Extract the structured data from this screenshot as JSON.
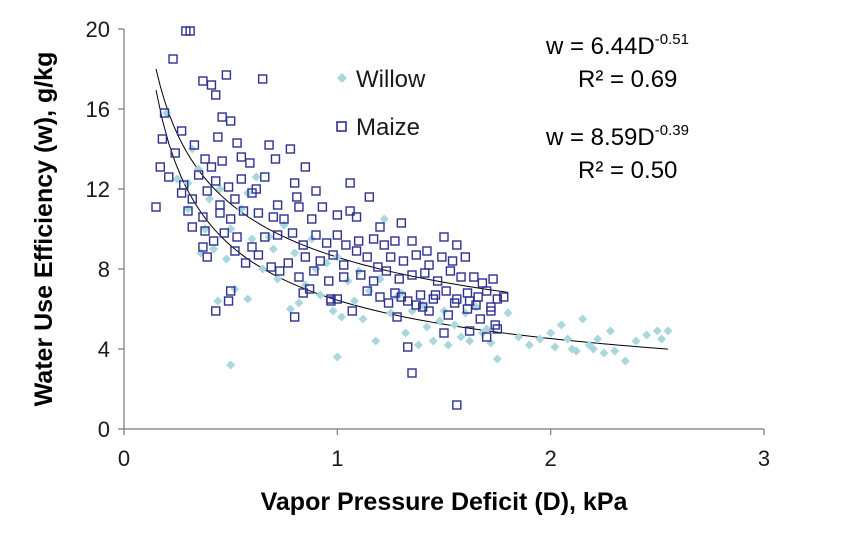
{
  "chart_data": {
    "type": "scatter",
    "xlabel": "Vapor Pressure Deficit (D), kPa",
    "ylabel": "Water Use Efficiency (w), g/kg",
    "xlim": [
      0,
      3
    ],
    "ylim": [
      0,
      20
    ],
    "x_ticks": [
      "0",
      "1",
      "2",
      "3"
    ],
    "y_ticks": [
      "0",
      "4",
      "8",
      "12",
      "16",
      "20"
    ],
    "grid": false,
    "legend_position": "top-center",
    "colors": {
      "willow": "#a9d8dc",
      "maize": "#2e3192",
      "fit": "#000000"
    },
    "series": [
      {
        "name": "Willow",
        "marker": "diamond",
        "points": [
          [
            0.2,
            15.8
          ],
          [
            0.25,
            12.5
          ],
          [
            0.3,
            11
          ],
          [
            0.32,
            14
          ],
          [
            0.35,
            13
          ],
          [
            0.38,
            10
          ],
          [
            0.4,
            11.5
          ],
          [
            0.42,
            9
          ],
          [
            0.45,
            12
          ],
          [
            0.48,
            8.5
          ],
          [
            0.5,
            10
          ],
          [
            0.52,
            7
          ],
          [
            0.55,
            11
          ],
          [
            0.58,
            6.5
          ],
          [
            0.6,
            9.5
          ],
          [
            0.62,
            12.6
          ],
          [
            0.65,
            8
          ],
          [
            0.7,
            9
          ],
          [
            0.72,
            7.5
          ],
          [
            0.75,
            10.2
          ],
          [
            0.78,
            6
          ],
          [
            0.8,
            8.8
          ],
          [
            0.82,
            6.3
          ],
          [
            0.85,
            7.2
          ],
          [
            0.88,
            9.5
          ],
          [
            0.9,
            8
          ],
          [
            0.92,
            6.7
          ],
          [
            0.95,
            8.3
          ],
          [
            0.98,
            5.9
          ],
          [
            1.0,
            8.6
          ],
          [
            1.02,
            5.6
          ],
          [
            1.05,
            7.4
          ],
          [
            1.08,
            6.4
          ],
          [
            1.1,
            7.9
          ],
          [
            1.12,
            5.5
          ],
          [
            1.15,
            6.9
          ],
          [
            1.18,
            4.4
          ],
          [
            1.2,
            7.5
          ],
          [
            1.22,
            10.5
          ],
          [
            1.25,
            5.8
          ],
          [
            1.28,
            6.6
          ],
          [
            1.3,
            6.8
          ],
          [
            1.32,
            4.8
          ],
          [
            1.35,
            5.9
          ],
          [
            1.38,
            4.2
          ],
          [
            1.4,
            6.2
          ],
          [
            1.42,
            5.1
          ],
          [
            1.45,
            4.4
          ],
          [
            1.48,
            5.4
          ],
          [
            1.5,
            5.9
          ],
          [
            1.52,
            4.2
          ],
          [
            1.55,
            5.2
          ],
          [
            1.58,
            4.6
          ],
          [
            1.6,
            5.8
          ],
          [
            1.62,
            4.4
          ],
          [
            1.65,
            6.1
          ],
          [
            1.68,
            4.8
          ],
          [
            1.7,
            5.0
          ],
          [
            1.72,
            4.3
          ],
          [
            1.75,
            3.5
          ],
          [
            1.8,
            5.8
          ],
          [
            1.85,
            4.6
          ],
          [
            1.9,
            4.2
          ],
          [
            1.95,
            4.5
          ],
          [
            2.0,
            4.8
          ],
          [
            2.02,
            4.1
          ],
          [
            2.05,
            5.2
          ],
          [
            2.08,
            4.5
          ],
          [
            2.1,
            4.0
          ],
          [
            2.12,
            3.9
          ],
          [
            2.15,
            5.5
          ],
          [
            2.18,
            4.2
          ],
          [
            2.2,
            4.0
          ],
          [
            2.22,
            4.5
          ],
          [
            2.25,
            3.8
          ],
          [
            2.28,
            4.9
          ],
          [
            2.3,
            3.9
          ],
          [
            2.35,
            3.4
          ],
          [
            2.4,
            4.4
          ],
          [
            2.45,
            4.7
          ],
          [
            2.5,
            4.9
          ],
          [
            2.52,
            4.5
          ],
          [
            2.55,
            4.9
          ],
          [
            0.44,
            6.4
          ],
          [
            0.5,
            3.2
          ],
          [
            1.0,
            3.6
          ],
          [
            0.36,
            8.8
          ],
          [
            0.3,
            12.3
          ],
          [
            0.58,
            11.8
          ],
          [
            0.68,
            9.6
          ]
        ]
      },
      {
        "name": "Maize",
        "marker": "square",
        "points": [
          [
            0.29,
            19.9
          ],
          [
            0.31,
            19.9
          ],
          [
            0.23,
            18.5
          ],
          [
            0.48,
            17.7
          ],
          [
            0.65,
            17.5
          ],
          [
            0.37,
            17.4
          ],
          [
            0.41,
            17.2
          ],
          [
            0.43,
            16.7
          ],
          [
            0.46,
            15.6
          ],
          [
            0.5,
            15.4
          ],
          [
            0.19,
            15.8
          ],
          [
            0.27,
            14.9
          ],
          [
            0.33,
            14.2
          ],
          [
            0.44,
            14.6
          ],
          [
            0.53,
            14.3
          ],
          [
            0.68,
            14.2
          ],
          [
            0.78,
            14
          ],
          [
            0.18,
            14.5
          ],
          [
            0.24,
            13.8
          ],
          [
            0.38,
            13.5
          ],
          [
            0.41,
            13.1
          ],
          [
            0.46,
            13.4
          ],
          [
            0.55,
            13.6
          ],
          [
            0.59,
            13.3
          ],
          [
            0.71,
            13.5
          ],
          [
            0.17,
            13.1
          ],
          [
            0.21,
            12.6
          ],
          [
            0.28,
            12.2
          ],
          [
            0.35,
            12.7
          ],
          [
            0.43,
            12.4
          ],
          [
            0.49,
            12.1
          ],
          [
            0.55,
            12.5
          ],
          [
            0.66,
            12.6
          ],
          [
            0.8,
            12.3
          ],
          [
            0.85,
            13.1
          ],
          [
            0.27,
            11.8
          ],
          [
            0.32,
            11.5
          ],
          [
            0.39,
            11.9
          ],
          [
            0.45,
            11.2
          ],
          [
            0.52,
            11.5
          ],
          [
            0.6,
            11.8
          ],
          [
            0.62,
            12.0
          ],
          [
            0.72,
            11.2
          ],
          [
            0.81,
            11.6
          ],
          [
            0.9,
            11.9
          ],
          [
            1.06,
            12.3
          ],
          [
            1.15,
            11.6
          ],
          [
            0.15,
            11.1
          ],
          [
            0.3,
            10.9
          ],
          [
            0.37,
            10.6
          ],
          [
            0.45,
            10.8
          ],
          [
            0.5,
            10.5
          ],
          [
            0.56,
            10.9
          ],
          [
            0.63,
            10.8
          ],
          [
            0.7,
            10.6
          ],
          [
            0.75,
            10.5
          ],
          [
            0.82,
            11.1
          ],
          [
            0.88,
            10.5
          ],
          [
            0.93,
            11.1
          ],
          [
            1.0,
            10.7
          ],
          [
            1.06,
            10.9
          ],
          [
            1.09,
            10.6
          ],
          [
            1.2,
            10.1
          ],
          [
            1.3,
            10.3
          ],
          [
            0.32,
            10.1
          ],
          [
            0.38,
            9.9
          ],
          [
            0.42,
            9.4
          ],
          [
            0.47,
            9.8
          ],
          [
            0.53,
            9.6
          ],
          [
            0.6,
            9.1
          ],
          [
            0.66,
            9.6
          ],
          [
            0.72,
            9.7
          ],
          [
            0.79,
            9.8
          ],
          [
            0.84,
            9.2
          ],
          [
            0.9,
            9.7
          ],
          [
            0.95,
            9.3
          ],
          [
            1.0,
            9.7
          ],
          [
            1.04,
            9.2
          ],
          [
            1.1,
            9.4
          ],
          [
            1.17,
            9.5
          ],
          [
            1.22,
            9.2
          ],
          [
            1.27,
            9.4
          ],
          [
            1.35,
            9.4
          ],
          [
            1.42,
            8.9
          ],
          [
            1.5,
            9.6
          ],
          [
            1.56,
            9.2
          ],
          [
            0.37,
            9.1
          ],
          [
            0.52,
            8.9
          ],
          [
            0.57,
            8.3
          ],
          [
            0.63,
            8.7
          ],
          [
            0.69,
            8.1
          ],
          [
            0.77,
            8.3
          ],
          [
            0.85,
            8.6
          ],
          [
            0.92,
            8.4
          ],
          [
            0.98,
            8.7
          ],
          [
            1.03,
            8.2
          ],
          [
            1.09,
            8.9
          ],
          [
            1.14,
            8.6
          ],
          [
            1.19,
            8.1
          ],
          [
            1.25,
            8.6
          ],
          [
            1.31,
            8.4
          ],
          [
            1.37,
            8.7
          ],
          [
            1.43,
            8.2
          ],
          [
            1.49,
            8.6
          ],
          [
            1.54,
            8.4
          ],
          [
            1.6,
            8.6
          ],
          [
            0.39,
            8.6
          ],
          [
            0.73,
            7.9
          ],
          [
            0.82,
            7.6
          ],
          [
            0.89,
            7.9
          ],
          [
            0.96,
            7.4
          ],
          [
            1.03,
            7.6
          ],
          [
            1.11,
            7.7
          ],
          [
            1.17,
            7.4
          ],
          [
            1.23,
            7.9
          ],
          [
            1.29,
            7.5
          ],
          [
            1.35,
            7.7
          ],
          [
            1.41,
            7.8
          ],
          [
            1.47,
            7.4
          ],
          [
            1.53,
            7.9
          ],
          [
            1.58,
            7.6
          ],
          [
            1.64,
            7.6
          ],
          [
            1.68,
            7.3
          ],
          [
            1.73,
            7.5
          ],
          [
            0.84,
            6.8
          ],
          [
            1.0,
            6.5
          ],
          [
            1.14,
            6.9
          ],
          [
            1.2,
            6.6
          ],
          [
            1.27,
            6.8
          ],
          [
            1.33,
            6.4
          ],
          [
            1.39,
            6.7
          ],
          [
            1.45,
            6.5
          ],
          [
            1.51,
            6.9
          ],
          [
            1.56,
            6.5
          ],
          [
            1.61,
            6.8
          ],
          [
            1.66,
            6.6
          ],
          [
            1.7,
            6.9
          ],
          [
            1.75,
            6.5
          ],
          [
            1.78,
            6.6
          ],
          [
            0.5,
            6.9
          ],
          [
            0.97,
            6.4
          ],
          [
            1.07,
            5.9
          ],
          [
            1.24,
            6.3
          ],
          [
            1.37,
            6.2
          ],
          [
            1.43,
            5.9
          ],
          [
            1.52,
            5.7
          ],
          [
            1.61,
            6.0
          ],
          [
            1.67,
            5.5
          ],
          [
            1.72,
            5.9
          ],
          [
            1.74,
            5.2
          ],
          [
            1.3,
            6.6
          ],
          [
            1.4,
            6.1
          ],
          [
            1.55,
            6.3
          ],
          [
            1.65,
            6.2
          ],
          [
            1.72,
            6.1
          ],
          [
            0.43,
            5.9
          ],
          [
            0.49,
            6.4
          ],
          [
            0.8,
            5.6
          ],
          [
            1.28,
            5.6
          ],
          [
            1.33,
            4.1
          ],
          [
            1.35,
            2.8
          ],
          [
            1.56,
            1.2
          ],
          [
            1.62,
            4.9
          ],
          [
            1.75,
            5.0
          ],
          [
            1.5,
            4.8
          ],
          [
            1.7,
            4.6
          ],
          [
            0.87,
            7.0
          ],
          [
            0.97,
            6.5
          ],
          [
            1.46,
            6.7
          ],
          [
            1.62,
            6.4
          ]
        ]
      }
    ],
    "fits": [
      {
        "label": "w = 6.44D",
        "exponent_label": "-0.51",
        "r2_label": "R² = 0.69",
        "a": 6.44,
        "b": -0.51,
        "x_range": [
          0.15,
          2.55
        ]
      },
      {
        "label": "w = 8.59D",
        "exponent_label": "-0.39",
        "r2_label": "R² = 0.50",
        "a": 8.59,
        "b": -0.39,
        "x_range": [
          0.15,
          1.8
        ]
      }
    ]
  }
}
